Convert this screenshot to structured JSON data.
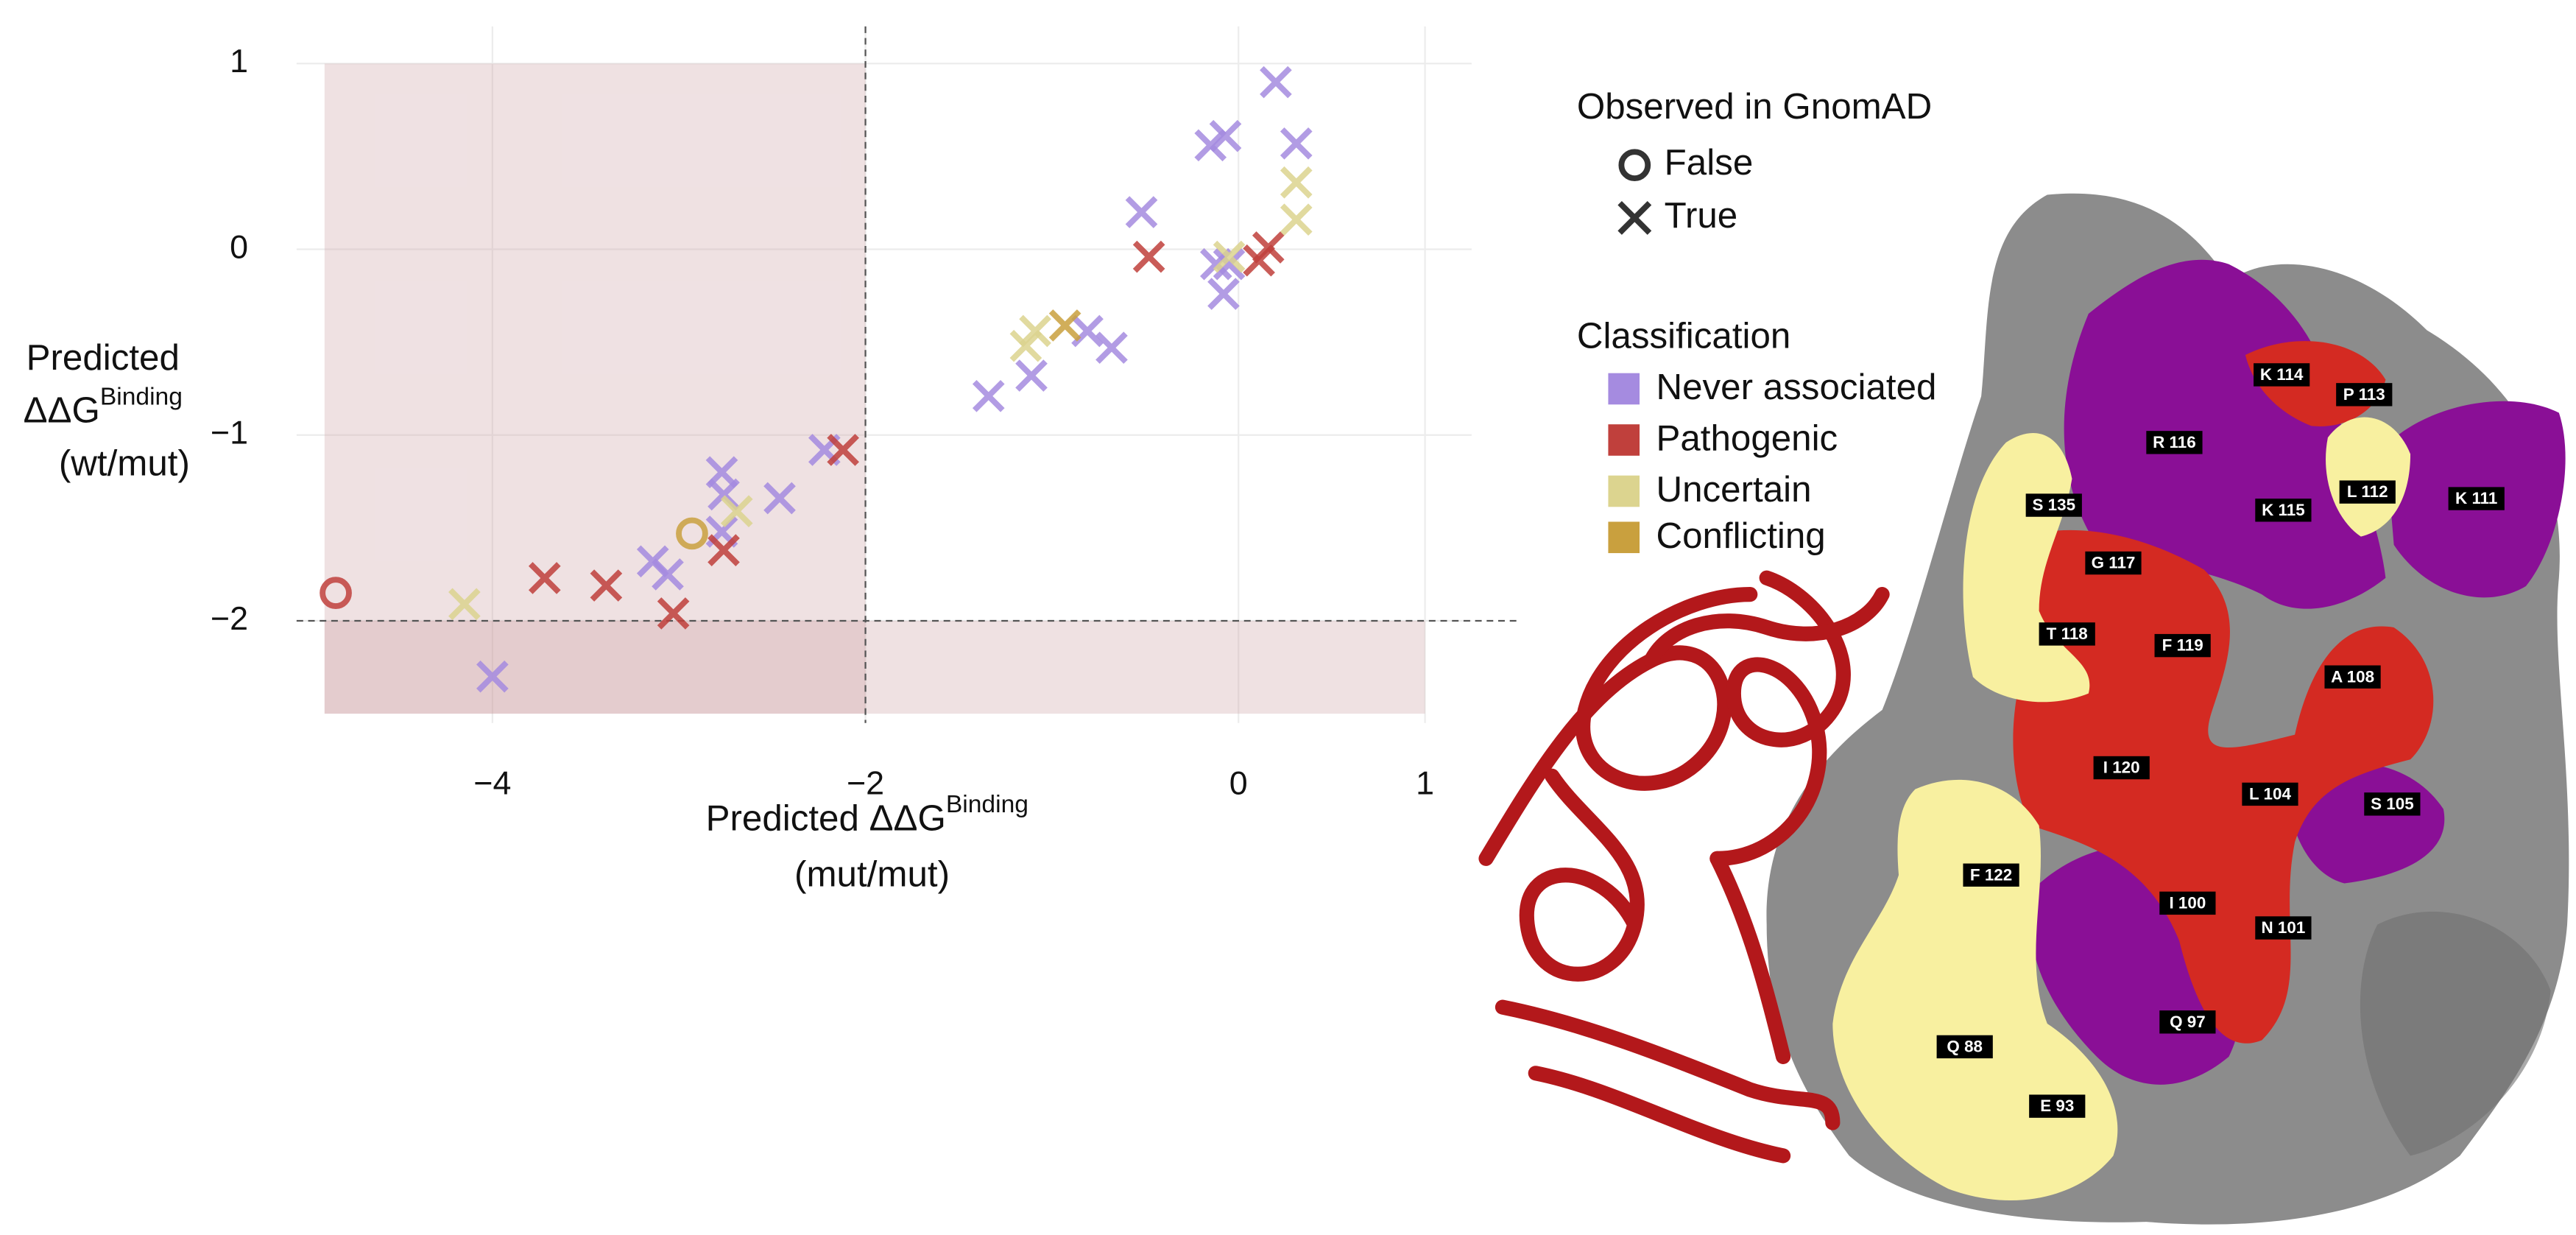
{
  "chart_data": {
    "type": "scatter",
    "x_label": {
      "main": "Predicted ΔΔG",
      "sup": "Binding",
      "line2": "(mut/mut)"
    },
    "y_label": {
      "line1": "Predicted",
      "main": "ΔΔG",
      "sup": "Binding",
      "line3": "(wt/mut)"
    },
    "xlim": [
      -5.05,
      1.25
    ],
    "ylim": [
      -2.55,
      1.2
    ],
    "xticks": [
      {
        "value": -4,
        "label": "−4"
      },
      {
        "value": -2,
        "label": "−2"
      },
      0,
      1
    ],
    "yticks": [
      {
        "value": -2,
        "label": "−2"
      },
      {
        "value": -1,
        "label": "−1"
      },
      0,
      1
    ],
    "grid": true,
    "vline": -2,
    "hline": -2,
    "regions": [
      {
        "x": [
          -4.9,
          -2
        ],
        "y": [
          -2.5,
          1
        ],
        "color": "#c99aa0"
      },
      {
        "x": [
          -4.9,
          1
        ],
        "y": [
          -2.5,
          -2
        ],
        "color": "#c99aa0"
      }
    ],
    "shape_legend": {
      "title": "Observed in GnomAD",
      "entries": [
        {
          "label": "False",
          "value": false
        },
        {
          "label": "True",
          "value": true
        }
      ]
    },
    "color_legend_title": "Classification",
    "series": [
      {
        "name": "Never associated",
        "color": "#a58be0",
        "x": [
          0.2,
          0.31,
          -0.15,
          -0.07,
          -0.52,
          -0.12,
          -0.08,
          -0.05,
          -0.81,
          -0.68,
          -1.11,
          -1.34,
          -2.22,
          -2.46,
          -2.77,
          -2.76,
          -3.14,
          -3.06,
          -2.77,
          -4.0
        ],
        "values": [
          0.9,
          0.57,
          0.56,
          0.61,
          0.2,
          -0.08,
          -0.24,
          -0.08,
          -0.44,
          -0.53,
          -0.68,
          -0.79,
          -1.08,
          -1.34,
          -1.2,
          -1.32,
          -1.68,
          -1.75,
          -1.52,
          -2.3
        ],
        "gnomad": [
          true,
          true,
          true,
          true,
          true,
          true,
          true,
          true,
          true,
          true,
          true,
          true,
          true,
          true,
          true,
          true,
          true,
          true,
          true,
          true
        ]
      },
      {
        "name": "Pathogenic",
        "color": "#c0403c",
        "x": [
          -0.48,
          0.16,
          0.11,
          -2.12,
          -2.76,
          -3.72,
          -3.39,
          -3.03,
          -4.84
        ],
        "values": [
          -0.04,
          0.01,
          -0.06,
          -1.08,
          -1.62,
          -1.77,
          -1.81,
          -1.96,
          -1.85
        ],
        "gnomad": [
          true,
          true,
          true,
          true,
          true,
          true,
          true,
          true,
          false
        ]
      },
      {
        "name": "Uncertain",
        "color": "#dcd48f",
        "x": [
          0.31,
          0.31,
          -0.05,
          -1.09,
          -1.14,
          -2.69,
          -4.15
        ],
        "values": [
          0.36,
          0.16,
          -0.04,
          -0.44,
          -0.52,
          -1.41,
          -1.91
        ],
        "gnomad": [
          true,
          true,
          true,
          true,
          true,
          true,
          true
        ]
      },
      {
        "name": "Conflicting",
        "color": "#c9a03e",
        "x": [
          -0.93,
          -2.93
        ],
        "values": [
          -0.41,
          -1.53
        ],
        "gnomad": [
          true,
          false
        ]
      }
    ]
  },
  "structure": {
    "residues": [
      "K 114",
      "P 113",
      "R 116",
      "L 112",
      "K 111",
      "S 135",
      "K 115",
      "G 117",
      "T 118",
      "F 119",
      "A 108",
      "I 120",
      "L 104",
      "S 105",
      "F 122",
      "I 100",
      "N 101",
      "Q 97",
      "Q 88",
      "E 93"
    ]
  }
}
